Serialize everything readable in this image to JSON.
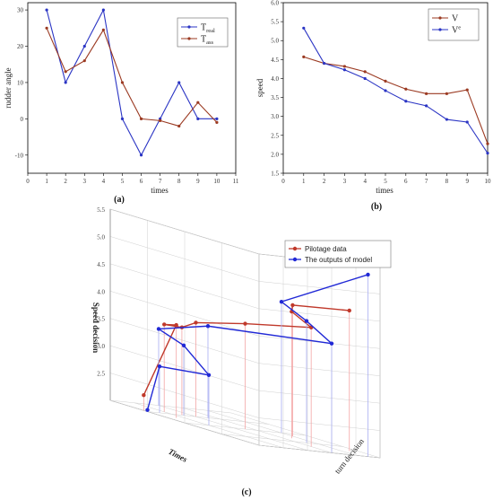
{
  "chart_data": [
    {
      "panel": "(a)",
      "type": "line",
      "xlabel": "times",
      "ylabel": "rudder angle",
      "xlim": [
        0,
        11
      ],
      "ylim": [
        -15,
        32
      ],
      "xticks": [
        "0",
        "1",
        "2",
        "3",
        "4",
        "5",
        "6",
        "7",
        "8",
        "9",
        "10",
        "11"
      ],
      "yticks": [
        "-10",
        "0",
        "10",
        "20",
        "30"
      ],
      "legend_position": "top-right",
      "series": [
        {
          "name_main": "T",
          "name_sub": "real",
          "color": "#2b35c4",
          "x": [
            1,
            2,
            3,
            4,
            5,
            6,
            7,
            8,
            9,
            10
          ],
          "y": [
            30,
            10,
            20,
            30,
            0,
            -10,
            0,
            10,
            0,
            0
          ]
        },
        {
          "name_main": "T",
          "name_sub": "ass",
          "color": "#9b3a22",
          "x": [
            1,
            2,
            3,
            4,
            5,
            6,
            7,
            8,
            9,
            10
          ],
          "y": [
            25,
            13,
            16,
            24.5,
            10,
            0,
            -0.5,
            -2,
            4.5,
            -1
          ]
        }
      ]
    },
    {
      "panel": "(b)",
      "type": "line",
      "xlabel": "times",
      "ylabel": "speed",
      "xlim": [
        0,
        10
      ],
      "ylim": [
        1.5,
        6.0
      ],
      "xticks": [
        "0",
        "1",
        "2",
        "3",
        "4",
        "5",
        "6",
        "7",
        "8",
        "9",
        "10"
      ],
      "yticks": [
        "1.5",
        "2.0",
        "2.5",
        "3.0",
        "3.5",
        "4.0",
        "4.5",
        "5.0",
        "5.5",
        "6.0"
      ],
      "legend_position": "top-right",
      "series": [
        {
          "name_main": "V",
          "name_sup": "",
          "color": "#9b3a22",
          "x": [
            1,
            2,
            3,
            4,
            5,
            6,
            7,
            8,
            9,
            10
          ],
          "y": [
            4.57,
            4.4,
            4.32,
            4.18,
            3.93,
            3.72,
            3.6,
            3.6,
            3.7,
            2.28
          ]
        },
        {
          "name_main": "V",
          "name_sup": "e",
          "color": "#2b35c4",
          "x": [
            1,
            2,
            3,
            4,
            5,
            6,
            7,
            8,
            9,
            10
          ],
          "y": [
            5.33,
            4.4,
            4.23,
            4.0,
            3.68,
            3.4,
            3.28,
            2.92,
            2.85,
            2.03
          ]
        }
      ]
    },
    {
      "panel": "(c)",
      "type": "scatter",
      "dim": "3d",
      "zlabel": "Speed decision",
      "xlabel": "Times",
      "ylabel": "turn decision",
      "zticks": [
        "2.5",
        "3.0",
        "3.5",
        "4.0",
        "4.5",
        "5.0",
        "5.5"
      ],
      "legend_position": "top-right",
      "series": [
        {
          "name": "Pilotage data",
          "color": "#c0392b",
          "t": [
            1,
            2,
            3,
            4,
            5,
            6,
            7,
            8,
            9,
            10
          ],
          "turn": [
            25,
            13,
            16,
            24.5,
            10,
            0,
            -0.5,
            -2,
            4.5,
            -1
          ],
          "speed": [
            4.57,
            4.4,
            4.32,
            4.18,
            3.93,
            3.72,
            3.6,
            3.6,
            3.7,
            2.28
          ]
        },
        {
          "name": "The outputs of model",
          "color": "#2129d6",
          "t": [
            1,
            2,
            3,
            4,
            5,
            6,
            7,
            8,
            9,
            10
          ],
          "turn": [
            30,
            10,
            20,
            30,
            0,
            -10,
            0,
            10,
            0,
            0
          ],
          "speed": [
            5.33,
            4.4,
            4.23,
            4.0,
            3.68,
            3.4,
            3.28,
            2.92,
            2.85,
            2.03
          ]
        }
      ]
    }
  ],
  "captions": {
    "a": "(a)",
    "b": "(b)",
    "c": "(c)"
  }
}
